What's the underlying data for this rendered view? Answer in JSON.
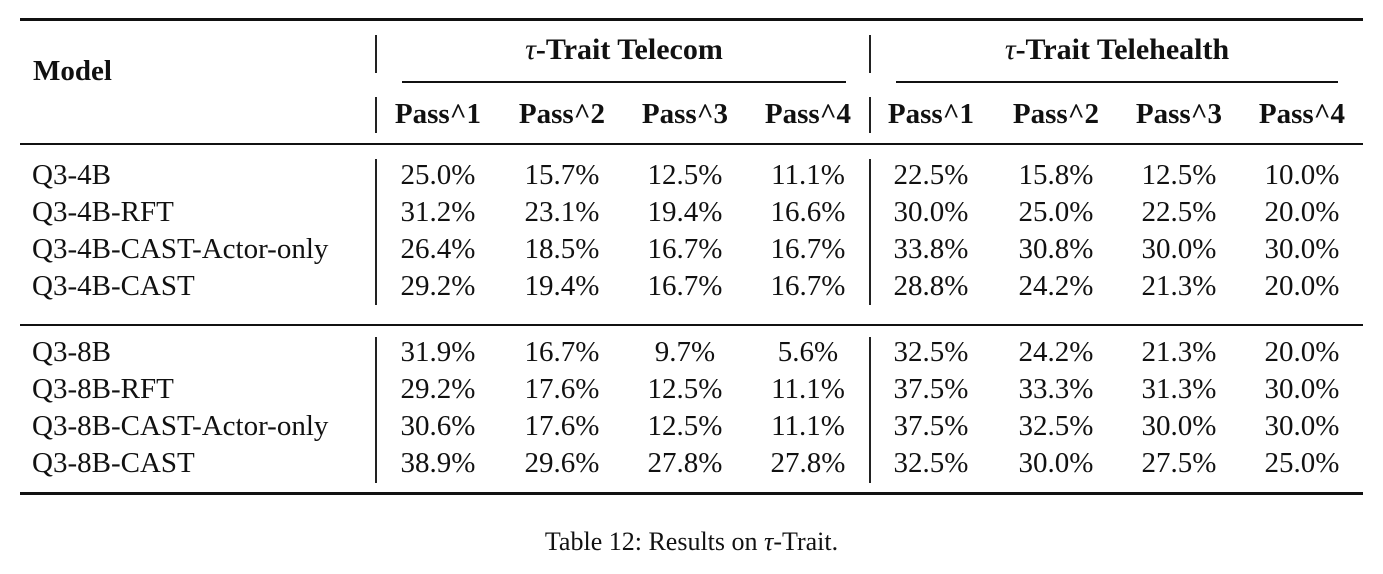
{
  "table": {
    "model_header": "Model",
    "groups": [
      {
        "tau": "τ",
        "title": "-Trait Telecom"
      },
      {
        "tau": "τ",
        "title": "-Trait Telehealth"
      }
    ],
    "sub_headers": [
      "Pass^1",
      "Pass^2",
      "Pass^3",
      "Pass^4",
      "Pass^1",
      "Pass^2",
      "Pass^3",
      "Pass^4"
    ],
    "blocks": [
      {
        "rows": [
          {
            "model": "Q3-4B",
            "values": [
              "25.0%",
              "15.7%",
              "12.5%",
              "11.1%",
              "22.5%",
              "15.8%",
              "12.5%",
              "10.0%"
            ]
          },
          {
            "model": "Q3-4B-RFT",
            "values": [
              "31.2%",
              "23.1%",
              "19.4%",
              "16.6%",
              "30.0%",
              "25.0%",
              "22.5%",
              "20.0%"
            ]
          },
          {
            "model": "Q3-4B-CAST-Actor-only",
            "values": [
              "26.4%",
              "18.5%",
              "16.7%",
              "16.7%",
              "33.8%",
              "30.8%",
              "30.0%",
              "30.0%"
            ]
          },
          {
            "model": "Q3-4B-CAST",
            "values": [
              "29.2%",
              "19.4%",
              "16.7%",
              "16.7%",
              "28.8%",
              "24.2%",
              "21.3%",
              "20.0%"
            ]
          }
        ]
      },
      {
        "rows": [
          {
            "model": "Q3-8B",
            "values": [
              "31.9%",
              "16.7%",
              "9.7%",
              "5.6%",
              "32.5%",
              "24.2%",
              "21.3%",
              "20.0%"
            ]
          },
          {
            "model": "Q3-8B-RFT",
            "values": [
              "29.2%",
              "17.6%",
              "12.5%",
              "11.1%",
              "37.5%",
              "33.3%",
              "31.3%",
              "30.0%"
            ]
          },
          {
            "model": "Q3-8B-CAST-Actor-only",
            "values": [
              "30.6%",
              "17.6%",
              "12.5%",
              "11.1%",
              "37.5%",
              "32.5%",
              "30.0%",
              "30.0%"
            ]
          },
          {
            "model": "Q3-8B-CAST",
            "values": [
              "38.9%",
              "29.6%",
              "27.8%",
              "27.8%",
              "32.5%",
              "30.0%",
              "27.5%",
              "25.0%"
            ]
          }
        ]
      }
    ]
  },
  "caption": {
    "prefix": "Table 12: Results on ",
    "tau": "τ",
    "suffix": "-Trait."
  }
}
